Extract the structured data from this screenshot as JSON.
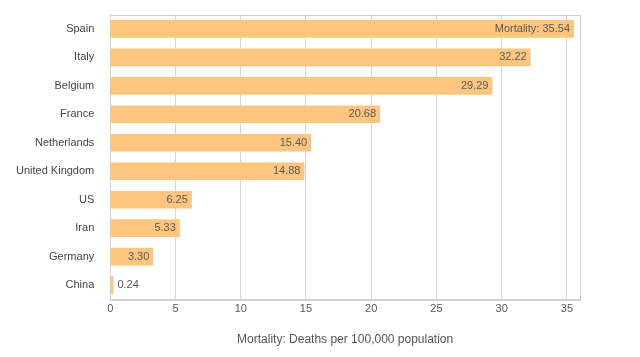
{
  "chart_data": {
    "type": "bar",
    "orientation": "horizontal",
    "x_label": "Mortality: Deaths per 100,000 population",
    "categories": [
      "Spain",
      "Italy",
      "Belgium",
      "France",
      "Netherlands",
      "United Kingdom",
      "US",
      "Iran",
      "Germany",
      "China"
    ],
    "values": [
      35.54,
      32.22,
      29.29,
      20.68,
      15.4,
      14.88,
      6.25,
      5.33,
      3.3,
      0.24
    ],
    "value_labels": [
      "Mortality: 35.54",
      "32.22",
      "29.29",
      "20.68",
      "15.40",
      "14.88",
      "6.25",
      "5.33",
      "3.30",
      "0.24"
    ],
    "data_labels": true,
    "color": "#fdc57e",
    "xlim": [
      0,
      36
    ],
    "xticks": [
      0,
      5,
      10,
      15,
      20,
      25,
      30,
      35
    ],
    "grid": true
  }
}
